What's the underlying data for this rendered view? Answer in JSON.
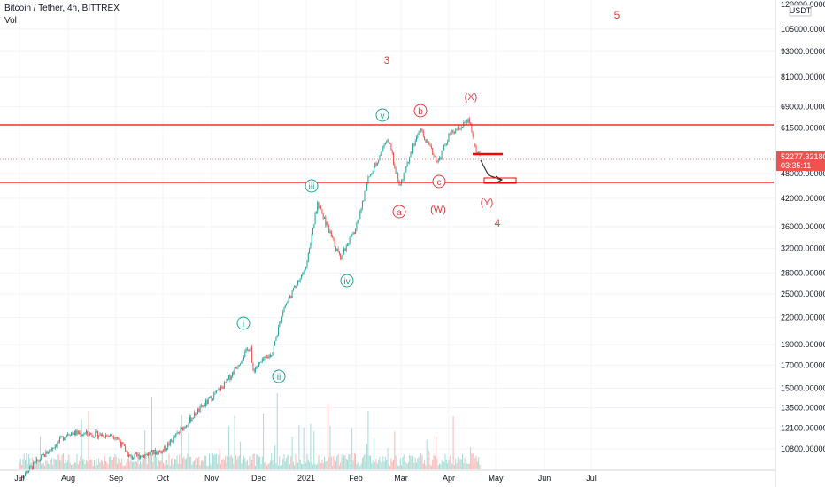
{
  "header": {
    "symbol_title": "Bitcoin / Tether, 4h, BITTREX",
    "volume_label": "Vol"
  },
  "price_axis": {
    "currency_badge": "USDT",
    "top_label": "120000.00000",
    "labels": [
      "105000.00000",
      "93000.00000",
      "81000.00000",
      "69000.00000",
      "61500.00000",
      "48000.00000",
      "42000.00000",
      "36000.00000",
      "32000.00000",
      "28000.00000",
      "25000.00000",
      "22000.00000",
      "19000.00000",
      "17000.00000",
      "15000.00000",
      "13500.00000",
      "12100.00000",
      "10800.00000"
    ],
    "current_price": "52277.32180",
    "countdown": "03:35:11"
  },
  "time_axis": {
    "labels": [
      "Jul",
      "Aug",
      "Sep",
      "Oct",
      "Nov",
      "Dec",
      "2021",
      "Feb",
      "Mar",
      "Apr",
      "May",
      "Jun",
      "Jul"
    ]
  },
  "annotations": {
    "wave_labels": [
      "5",
      "3",
      "4"
    ],
    "impulse_labels": [
      "i",
      "ii",
      "iii",
      "iv",
      "v"
    ],
    "correction_labels": [
      "a",
      "b",
      "c"
    ],
    "complex_labels": [
      "(W)",
      "(X)",
      "(Y)"
    ]
  },
  "colors": {
    "teal": "#1aa393",
    "red": "#e33b3b",
    "up_candle": "#26a69a",
    "down_candle": "#ef5350",
    "current_price_bg": "#ef5350",
    "horizontal_line": "#ff0000"
  },
  "chart_data": {
    "type": "candlestick",
    "title": "Bitcoin / Tether, 4h, BITTREX",
    "y_scale": "log",
    "ylim": [
      10000,
      120000
    ],
    "x_range": [
      "2020-07",
      "2021-07"
    ],
    "horizontal_levels": [
      62500,
      47000
    ],
    "close_path": [
      {
        "date": "2020-07-01",
        "close": 9200
      },
      {
        "date": "2020-08-01",
        "close": 11800
      },
      {
        "date": "2020-09-01",
        "close": 11600
      },
      {
        "date": "2020-09-10",
        "close": 10300
      },
      {
        "date": "2020-10-01",
        "close": 10700
      },
      {
        "date": "2020-10-22",
        "close": 13100
      },
      {
        "date": "2020-11-10",
        "close": 15400
      },
      {
        "date": "2020-11-26",
        "close": 19000
      },
      {
        "date": "2020-11-27",
        "close": 16500
      },
      {
        "date": "2020-12-10",
        "close": 18200
      },
      {
        "date": "2020-12-17",
        "close": 23000
      },
      {
        "date": "2021-01-01",
        "close": 29000
      },
      {
        "date": "2021-01-08",
        "close": 41000
      },
      {
        "date": "2021-01-22",
        "close": 30500
      },
      {
        "date": "2021-02-01",
        "close": 35500
      },
      {
        "date": "2021-02-09",
        "close": 47000
      },
      {
        "date": "2021-02-21",
        "close": 58000
      },
      {
        "date": "2021-02-28",
        "close": 45000
      },
      {
        "date": "2021-03-13",
        "close": 61000
      },
      {
        "date": "2021-03-25",
        "close": 51000
      },
      {
        "date": "2021-04-01",
        "close": 58800
      },
      {
        "date": "2021-04-14",
        "close": 64000
      },
      {
        "date": "2021-04-18",
        "close": 55000
      },
      {
        "date": "2021-04-21",
        "close": 52277
      }
    ]
  }
}
